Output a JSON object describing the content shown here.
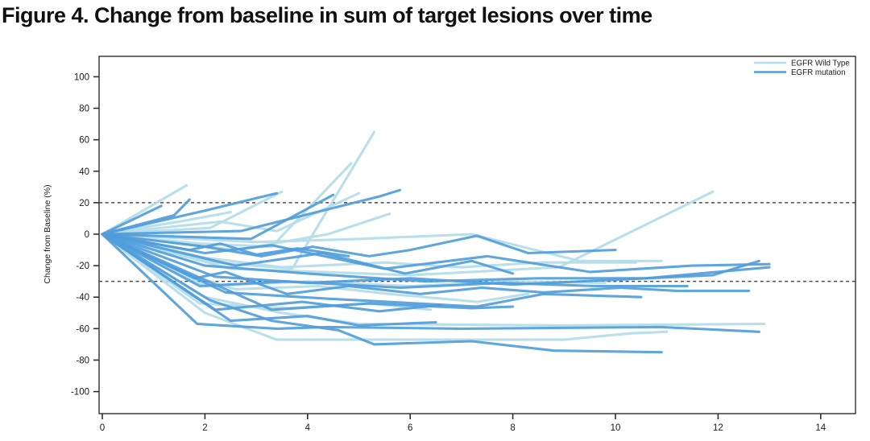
{
  "page": {
    "title": "Figure 4. Change from baseline in sum of target lesions over time"
  },
  "chart_data": {
    "type": "line",
    "title": "Figure 4. Change from baseline in sum of target lesions over time",
    "xlabel": "",
    "ylabel": "Change from Baseline (%)",
    "xlim": [
      0,
      14.7
    ],
    "ylim": [
      -113,
      113
    ],
    "x_ticks": [
      0,
      2,
      4,
      6,
      8,
      10,
      12,
      14
    ],
    "y_ticks": [
      100,
      80,
      60,
      40,
      20,
      0,
      -20,
      -40,
      -60,
      -80,
      -100
    ],
    "grid": false,
    "reference_lines": [
      {
        "y": 20,
        "style": "dashed",
        "color": "#4a4a4a"
      },
      {
        "y": -30,
        "style": "dashed",
        "color": "#4a4a4a"
      }
    ],
    "legend": {
      "position": "top-right",
      "entries": [
        {
          "label": "EGFR Wild Type",
          "color": "#b3dde8"
        },
        {
          "label": "EGFR mutation",
          "color": "#519ddb"
        }
      ]
    },
    "colors": {
      "frame": "#2f2f2f",
      "text": "#1a1a1a",
      "background": "#ffffff"
    },
    "series": [
      {
        "group": "EGFR Wild Type",
        "points": [
          [
            0,
            0
          ],
          [
            1.64,
            31
          ]
        ]
      },
      {
        "group": "EGFR Wild Type",
        "points": [
          [
            0,
            0
          ],
          [
            2.1,
            4
          ],
          [
            3.5,
            27
          ]
        ]
      },
      {
        "group": "EGFR Wild Type",
        "points": [
          [
            0,
            0
          ],
          [
            1.9,
            -6
          ],
          [
            3.3,
            -8
          ],
          [
            4.85,
            45
          ]
        ]
      },
      {
        "group": "EGFR Wild Type",
        "points": [
          [
            0,
            0
          ],
          [
            2.2,
            -18
          ],
          [
            3.7,
            -22
          ],
          [
            5.3,
            65
          ]
        ]
      },
      {
        "group": "EGFR Wild Type",
        "points": [
          [
            0,
            0
          ],
          [
            2.6,
            -10
          ],
          [
            4.4,
            0
          ],
          [
            5.6,
            13
          ]
        ]
      },
      {
        "group": "EGFR Wild Type",
        "points": [
          [
            0,
            0
          ],
          [
            1.5,
            8
          ],
          [
            2.5,
            14
          ]
        ]
      },
      {
        "group": "EGFR Wild Type",
        "points": [
          [
            0,
            0
          ],
          [
            2.3,
            8
          ],
          [
            3.4,
            2
          ],
          [
            5.0,
            26
          ]
        ]
      },
      {
        "group": "EGFR Wild Type",
        "points": [
          [
            0,
            0
          ],
          [
            3.0,
            -5
          ],
          [
            5.0,
            -3
          ],
          [
            7.2,
            0
          ],
          [
            9.3,
            -17
          ],
          [
            10.9,
            -17
          ]
        ]
      },
      {
        "group": "EGFR Wild Type",
        "points": [
          [
            0,
            0
          ],
          [
            2.0,
            -15
          ],
          [
            3.5,
            -21
          ],
          [
            5.5,
            -18
          ],
          [
            7.0,
            -21
          ],
          [
            8.5,
            -18
          ],
          [
            10.4,
            -18
          ]
        ]
      },
      {
        "group": "EGFR Wild Type",
        "points": [
          [
            0,
            0
          ],
          [
            2.5,
            -22
          ],
          [
            6.0,
            -26
          ],
          [
            8.9,
            -21
          ],
          [
            11.9,
            27
          ]
        ]
      },
      {
        "group": "EGFR Wild Type",
        "points": [
          [
            0,
            0
          ],
          [
            2.0,
            -33
          ],
          [
            4.0,
            -30
          ],
          [
            6.0,
            -33
          ],
          [
            8.0,
            -30
          ],
          [
            9.8,
            -31
          ]
        ]
      },
      {
        "group": "EGFR Wild Type",
        "points": [
          [
            0,
            0
          ],
          [
            2.0,
            -40
          ],
          [
            3.5,
            -50
          ],
          [
            5.0,
            -57
          ],
          [
            9.0,
            -58
          ],
          [
            12.9,
            -57
          ]
        ]
      },
      {
        "group": "EGFR Wild Type",
        "points": [
          [
            0,
            0
          ],
          [
            2.0,
            -50
          ],
          [
            3.4,
            -67
          ],
          [
            4.6,
            -67
          ],
          [
            9.0,
            -67
          ],
          [
            10.3,
            -63
          ],
          [
            11.0,
            -62
          ]
        ]
      },
      {
        "group": "EGFR Wild Type",
        "points": [
          [
            0,
            0
          ],
          [
            1.6,
            -25
          ],
          [
            2.6,
            -35
          ],
          [
            4.2,
            -33
          ],
          [
            5.6,
            -38
          ],
          [
            7.3,
            -43
          ],
          [
            8.3,
            -38
          ]
        ]
      },
      {
        "group": "EGFR Wild Type",
        "points": [
          [
            0,
            0
          ],
          [
            1.9,
            -44
          ],
          [
            3.6,
            -47
          ],
          [
            5.2,
            -44
          ],
          [
            6.4,
            -48
          ]
        ]
      },
      {
        "group": "EGFR mutation",
        "points": [
          [
            0,
            0
          ],
          [
            1.15,
            18
          ]
        ]
      },
      {
        "group": "EGFR mutation",
        "points": [
          [
            0,
            0
          ],
          [
            1.4,
            12
          ],
          [
            1.7,
            22
          ]
        ]
      },
      {
        "group": "EGFR mutation",
        "points": [
          [
            0,
            0
          ],
          [
            2.0,
            15
          ],
          [
            3.4,
            26
          ]
        ]
      },
      {
        "group": "EGFR mutation",
        "points": [
          [
            0,
            0
          ],
          [
            2.9,
            -3
          ],
          [
            4.5,
            25
          ]
        ]
      },
      {
        "group": "EGFR mutation",
        "points": [
          [
            0,
            0
          ],
          [
            2.7,
            2
          ],
          [
            5.4,
            24
          ],
          [
            5.8,
            28
          ]
        ]
      },
      {
        "group": "EGFR mutation",
        "points": [
          [
            0,
            0
          ],
          [
            2.0,
            -12
          ],
          [
            3.3,
            -7
          ],
          [
            5.5,
            -22
          ],
          [
            7.5,
            -14
          ],
          [
            9.5,
            -24
          ],
          [
            11.5,
            -20
          ],
          [
            13.0,
            -19
          ]
        ]
      },
      {
        "group": "EGFR mutation",
        "points": [
          [
            0,
            0
          ],
          [
            2.2,
            -27
          ],
          [
            4.0,
            -31
          ],
          [
            6.0,
            -28
          ],
          [
            8.0,
            -32
          ],
          [
            10.0,
            -29
          ],
          [
            11.9,
            -26
          ],
          [
            12.8,
            -17
          ]
        ]
      },
      {
        "group": "EGFR mutation",
        "points": [
          [
            0,
            0
          ],
          [
            2.0,
            -20
          ],
          [
            4.0,
            -25
          ],
          [
            6.3,
            -30
          ],
          [
            8.5,
            -28
          ],
          [
            10.6,
            -28
          ],
          [
            13.0,
            -21
          ]
        ]
      },
      {
        "group": "EGFR mutation",
        "points": [
          [
            0,
            0
          ],
          [
            1.9,
            -33
          ],
          [
            3.6,
            -30
          ],
          [
            5.8,
            -34
          ],
          [
            7.8,
            -31
          ],
          [
            9.6,
            -33
          ],
          [
            11.4,
            -33
          ]
        ]
      },
      {
        "group": "EGFR mutation",
        "points": [
          [
            0,
            0
          ],
          [
            2.4,
            -37
          ],
          [
            4.4,
            -41
          ],
          [
            7.3,
            -46
          ],
          [
            8.6,
            -38
          ],
          [
            10.5,
            -40
          ]
        ]
      },
      {
        "group": "EGFR mutation",
        "points": [
          [
            0,
            0
          ],
          [
            3.3,
            -48
          ],
          [
            5.2,
            -44
          ],
          [
            7.2,
            -47
          ],
          [
            8.0,
            -46
          ]
        ]
      },
      {
        "group": "EGFR mutation",
        "points": [
          [
            0,
            0
          ],
          [
            1.85,
            -57
          ],
          [
            3.4,
            -60
          ],
          [
            4.4,
            -59
          ],
          [
            7.0,
            -60
          ],
          [
            10.9,
            -59
          ],
          [
            12.8,
            -62
          ]
        ]
      },
      {
        "group": "EGFR mutation",
        "points": [
          [
            0,
            0
          ],
          [
            2.1,
            -42
          ],
          [
            3.3,
            -55
          ],
          [
            4.6,
            -61
          ],
          [
            5.3,
            -70
          ],
          [
            7.2,
            -68
          ],
          [
            8.8,
            -74
          ],
          [
            10.9,
            -75
          ]
        ]
      },
      {
        "group": "EGFR mutation",
        "points": [
          [
            0,
            0
          ],
          [
            2.6,
            -20
          ],
          [
            4.3,
            -12
          ],
          [
            5.9,
            -25
          ],
          [
            7.2,
            -17
          ],
          [
            8.0,
            -25
          ]
        ]
      },
      {
        "group": "EGFR mutation",
        "points": [
          [
            0,
            0
          ],
          [
            2.0,
            -8
          ],
          [
            3.1,
            -14
          ],
          [
            4.1,
            -8
          ],
          [
            5.2,
            -14
          ],
          [
            6.0,
            -10
          ],
          [
            7.3,
            -1
          ],
          [
            8.3,
            -12
          ],
          [
            10.0,
            -10
          ]
        ]
      },
      {
        "group": "EGFR mutation",
        "points": [
          [
            0,
            0
          ],
          [
            1.7,
            -10
          ],
          [
            2.3,
            -6
          ],
          [
            3.0,
            -13
          ],
          [
            3.8,
            -9
          ],
          [
            4.8,
            -14
          ]
        ]
      },
      {
        "group": "EGFR mutation",
        "points": [
          [
            0,
            0
          ],
          [
            2.2,
            -48
          ],
          [
            3.9,
            -43
          ],
          [
            5.4,
            -49
          ],
          [
            6.6,
            -45
          ]
        ]
      },
      {
        "group": "EGFR mutation",
        "points": [
          [
            0,
            0
          ],
          [
            1.8,
            -28
          ],
          [
            2.4,
            -24
          ],
          [
            3.6,
            -38
          ],
          [
            4.8,
            -33
          ],
          [
            6.2,
            -38
          ],
          [
            7.4,
            -34
          ],
          [
            8.6,
            -37
          ],
          [
            10.1,
            -34
          ],
          [
            11.2,
            -36
          ],
          [
            12.6,
            -36
          ]
        ]
      },
      {
        "group": "EGFR mutation",
        "points": [
          [
            0,
            0
          ],
          [
            2.5,
            -55
          ],
          [
            4.0,
            -52
          ],
          [
            5.0,
            -58
          ],
          [
            6.5,
            -56
          ]
        ]
      }
    ]
  }
}
